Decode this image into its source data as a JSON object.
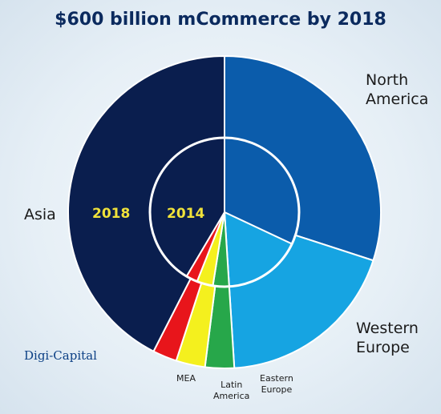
{
  "title": "$600 billion mCommerce by 2018",
  "logo_text": "Digi-Capital",
  "chart_data": {
    "type": "pie",
    "title": "$600 billion mCommerce by 2018",
    "rings": [
      {
        "name": "2018",
        "slices": [
          {
            "label": "North America",
            "value": 30.0,
            "color": "#0b5cab"
          },
          {
            "label": "Western Europe",
            "value": 19.0,
            "color": "#16a4e2"
          },
          {
            "label": "Eastern Europe",
            "value": 3.0,
            "color": "#27a74a"
          },
          {
            "label": "Latin America",
            "value": 3.0,
            "color": "#f4f01e"
          },
          {
            "label": "MEA",
            "value": 2.5,
            "color": "#e8151b"
          },
          {
            "label": "Asia",
            "value": 42.5,
            "color": "#0a1e4e"
          }
        ]
      },
      {
        "name": "2014",
        "slices": [
          {
            "label": "North America",
            "value": 32.0,
            "color": "#0b5cab"
          },
          {
            "label": "Western Europe",
            "value": 17.0,
            "color": "#16a4e2"
          },
          {
            "label": "Eastern Europe",
            "value": 3.5,
            "color": "#27a74a"
          },
          {
            "label": "Latin America",
            "value": 3.5,
            "color": "#f4f01e"
          },
          {
            "label": "MEA",
            "value": 2.5,
            "color": "#e8151b"
          },
          {
            "label": "Asia",
            "value": 41.5,
            "color": "#0a1e4e"
          }
        ]
      }
    ],
    "ring_labels": [
      "2018",
      "2014"
    ],
    "legend": "none"
  },
  "labels": {
    "north_america": [
      "North",
      "America"
    ],
    "western_europe": [
      "Western",
      "Europe"
    ],
    "asia": "Asia",
    "mea": "MEA",
    "latin_america": [
      "Latin",
      "America"
    ],
    "eastern_europe": [
      "Eastern",
      "Europe"
    ]
  }
}
